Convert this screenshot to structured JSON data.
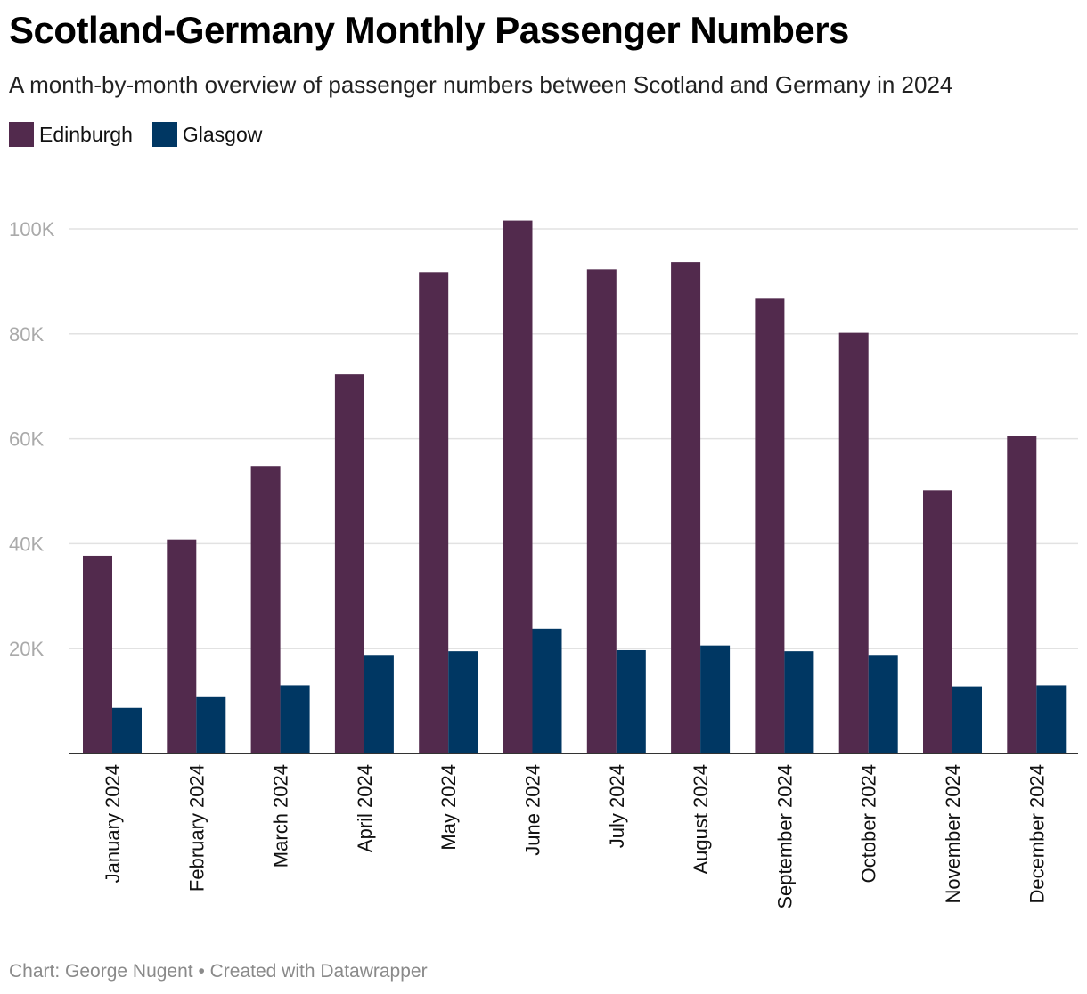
{
  "title": "Scotland-Germany Monthly Passenger Numbers",
  "subtitle": "A month-by-month overview of passenger numbers between Scotland and Germany in 2024",
  "footer": "Chart: George Nugent • Created with Datawrapper",
  "colors": {
    "edinburgh": "#522a4d",
    "glasgow": "#003763",
    "grid": "#e2e2e2",
    "axis": "#333333",
    "tick": "#aaaaaa"
  },
  "chart_data": {
    "type": "bar",
    "title": "Scotland-Germany Monthly Passenger Numbers",
    "xlabel": "",
    "ylabel": "",
    "ylim": [
      0,
      100000
    ],
    "yticks": [
      20000,
      40000,
      60000,
      80000,
      100000
    ],
    "ytick_labels": [
      "20K",
      "40K",
      "60K",
      "80K",
      "100K"
    ],
    "grid": true,
    "legend_position": "top-left",
    "categories": [
      "January 2024",
      "February 2024",
      "March 2024",
      "April 2024",
      "May 2024",
      "June 2024",
      "July 2024",
      "August 2024",
      "September 2024",
      "October 2024",
      "November 2024",
      "December 2024"
    ],
    "series": [
      {
        "name": "Edinburgh",
        "values": [
          37700,
          40800,
          54800,
          72300,
          91800,
          101600,
          92300,
          93700,
          86700,
          80200,
          50200,
          60500
        ]
      },
      {
        "name": "Glasgow",
        "values": [
          8700,
          10900,
          13000,
          18800,
          19500,
          23800,
          19700,
          20600,
          19500,
          18800,
          12800,
          13000
        ]
      }
    ]
  }
}
